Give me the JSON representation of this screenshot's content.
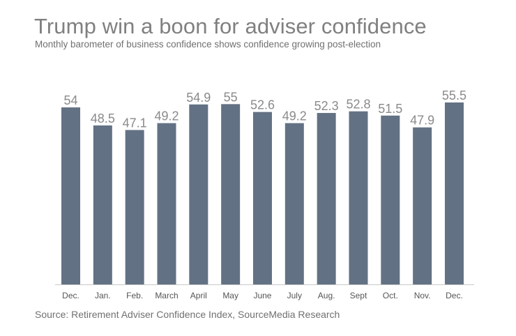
{
  "chart_data": {
    "type": "bar",
    "title": "Trump win a boon for adviser confidence",
    "subtitle": "Monthly barometer of business confidence shows confidence growing post-election",
    "categories": [
      "Dec.",
      "Jan.",
      "Feb.",
      "March",
      "April",
      "May",
      "June",
      "July",
      "Aug.",
      "Sept",
      "Oct.",
      "Nov.",
      "Dec."
    ],
    "values": [
      54,
      48.5,
      47.1,
      49.2,
      54.9,
      55,
      52.6,
      49.2,
      52.3,
      52.8,
      51.5,
      47.9,
      55.5
    ],
    "value_labels": [
      "54",
      "48.5",
      "47.1",
      "49.2",
      "54.9",
      "55",
      "52.6",
      "49.2",
      "52.3",
      "52.8",
      "51.5",
      "47.9",
      "55.5"
    ],
    "xlabel": "",
    "ylabel": "",
    "ylim": [
      0,
      55.5
    ],
    "grid": false,
    "source": "Source: Retirement Adviser Confidence Index, SourceMedia Research",
    "colors": {
      "bar": "#637184"
    }
  }
}
